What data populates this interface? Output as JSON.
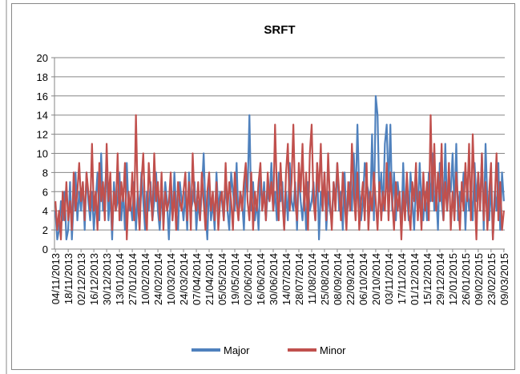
{
  "chart_data": {
    "type": "line",
    "title": "SRFT",
    "categories": [
      "04/11/2013",
      null,
      null,
      null,
      null,
      null,
      null,
      "18/11/2013",
      null,
      null,
      null,
      null,
      null,
      null,
      "02/12/2013",
      null,
      null,
      null,
      null,
      null,
      null,
      "16/12/2013",
      null,
      null,
      null,
      null,
      null,
      null,
      "30/12/2013",
      null,
      null,
      null,
      null,
      null,
      null,
      "13/01/2014",
      null,
      null,
      null,
      null,
      null,
      null,
      "27/01/2014",
      null,
      null,
      null,
      null,
      null,
      null,
      "10/02/2014",
      null,
      null,
      null,
      null,
      null,
      null,
      "24/02/2014",
      null,
      null,
      null,
      null,
      null,
      null,
      "10/03/2014",
      null,
      null,
      null,
      null,
      null,
      null,
      "24/03/2014",
      null,
      null,
      null,
      null,
      null,
      null,
      "07/04/2014",
      null,
      null,
      null,
      null,
      null,
      null,
      "21/04/2014",
      null,
      null,
      null,
      null,
      null,
      null,
      "05/05/2014",
      null,
      null,
      null,
      null,
      null,
      null,
      "19/05/2014",
      null,
      null,
      null,
      null,
      null,
      null,
      "02/06/2014",
      null,
      null,
      null,
      null,
      null,
      null,
      "16/06/2014",
      null,
      null,
      null,
      null,
      null,
      null,
      "30/06/2014",
      null,
      null,
      null,
      null,
      null,
      null,
      "14/07/2014",
      null,
      null,
      null,
      null,
      null,
      null,
      "28/07/2014",
      null,
      null,
      null,
      null,
      null,
      null,
      "11/08/2014",
      null,
      null,
      null,
      null,
      null,
      null,
      "25/08/2014",
      null,
      null,
      null,
      null,
      null,
      null,
      "08/09/2014",
      null,
      null,
      null,
      null,
      null,
      null,
      "22/09/2014",
      null,
      null,
      null,
      null,
      null,
      null,
      "06/10/2014",
      null,
      null,
      null,
      null,
      null,
      null,
      "20/10/2014",
      null,
      null,
      null,
      null,
      null,
      null,
      "03/11/2014",
      null,
      null,
      null,
      null,
      null,
      null,
      "17/11/2014",
      null,
      null,
      null,
      null,
      null,
      null,
      "01/12/2014",
      null,
      null,
      null,
      null,
      null,
      null,
      "15/12/2014",
      null,
      null,
      null,
      null,
      null,
      null,
      "29/12/2014",
      null,
      null,
      null,
      null,
      null,
      null,
      "12/01/2015",
      null,
      null,
      null,
      null,
      null,
      null,
      "26/01/2015",
      null,
      null,
      null,
      null,
      null,
      null,
      "09/02/2015",
      null,
      null,
      null,
      null,
      null,
      null,
      "23/02/2015",
      null,
      null,
      null,
      null,
      null,
      null,
      "09/03/2015"
    ],
    "series": [
      {
        "name": "Major",
        "color": "#4f81bd",
        "values": [
          4,
          1,
          2,
          5,
          3,
          6,
          1,
          2,
          7,
          1,
          5,
          8,
          3,
          6,
          4,
          7,
          2,
          8,
          5,
          3,
          6,
          2,
          5,
          8,
          3,
          10,
          4,
          6,
          9,
          3,
          6,
          1,
          7,
          4,
          5,
          8,
          3,
          6,
          2,
          9,
          4,
          5,
          3,
          7,
          2,
          6,
          4,
          8,
          5,
          2,
          6,
          4,
          7,
          3,
          5,
          8,
          4,
          2,
          6,
          3,
          7,
          5,
          1,
          6,
          3,
          8,
          4,
          2,
          7,
          5,
          3,
          6,
          2,
          8,
          4,
          5,
          7,
          2,
          5,
          3,
          6,
          10,
          4,
          1,
          7,
          3,
          5,
          2,
          8,
          4,
          6,
          5,
          3,
          7,
          4,
          2,
          8,
          6,
          4,
          9,
          3,
          6,
          5,
          2,
          8,
          6,
          14,
          4,
          7,
          3,
          5,
          2,
          8,
          4,
          7,
          3,
          6,
          5,
          9,
          4,
          6,
          3,
          8,
          5,
          7,
          2,
          6,
          3,
          9,
          5,
          4,
          7,
          2,
          8,
          5,
          3,
          6,
          2,
          7,
          4,
          5,
          7,
          3,
          9,
          1,
          6,
          4,
          8,
          2,
          6,
          4,
          3,
          7,
          5,
          9,
          4,
          6,
          2,
          8,
          3,
          5,
          7,
          4,
          10,
          5,
          13,
          6,
          3,
          5,
          9,
          7,
          6,
          4,
          12,
          3,
          16,
          14,
          5,
          8,
          4,
          11,
          13,
          6,
          13,
          4,
          8,
          3,
          7,
          5,
          2,
          9,
          4,
          6,
          3,
          8,
          5,
          2,
          7,
          4,
          9,
          5,
          3,
          6,
          3,
          8,
          5,
          10,
          4,
          6,
          2,
          9,
          5,
          3,
          11,
          4,
          7,
          6,
          10,
          4,
          11,
          3,
          6,
          5,
          8,
          2,
          7,
          4,
          6,
          3,
          9,
          5,
          8,
          4,
          10,
          2,
          11,
          5,
          3,
          7,
          1,
          6,
          4,
          9,
          2,
          8,
          5
        ]
      },
      {
        "name": "Minor",
        "color": "#c0504d",
        "values": [
          5,
          2,
          4,
          1,
          6,
          3,
          7,
          3,
          5,
          2,
          8,
          4,
          6,
          9,
          5,
          7,
          3,
          8,
          6,
          4,
          11,
          4,
          6,
          2,
          9,
          5,
          7,
          3,
          11,
          5,
          8,
          2,
          6,
          4,
          10,
          3,
          7,
          5,
          9,
          1,
          6,
          4,
          8,
          3,
          14,
          5,
          2,
          7,
          10,
          4,
          2,
          9,
          6,
          3,
          10,
          5,
          7,
          3,
          8,
          2,
          6,
          4,
          5,
          8,
          3,
          6,
          2,
          7,
          5,
          4,
          6,
          8,
          3,
          7,
          2,
          10,
          5,
          4,
          7,
          3,
          8,
          5,
          2,
          6,
          8,
          4,
          6,
          3,
          7,
          2,
          5,
          6,
          3,
          9,
          4,
          7,
          5,
          2,
          8,
          5,
          3,
          6,
          4,
          7,
          9,
          5,
          3,
          8,
          2,
          6,
          4,
          7,
          9,
          4,
          6,
          3,
          8,
          5,
          7,
          4,
          13,
          6,
          3,
          9,
          5,
          2,
          8,
          11,
          4,
          7,
          13,
          5,
          3,
          9,
          6,
          11,
          4,
          8,
          2,
          10,
          13,
          5,
          3,
          9,
          6,
          11,
          4,
          8,
          3,
          10,
          5,
          2,
          7,
          4,
          9,
          6,
          3,
          8,
          5,
          2,
          7,
          4,
          11,
          6,
          3,
          8,
          2,
          5,
          7,
          3,
          9,
          2,
          6,
          4,
          8,
          5,
          2,
          7,
          3,
          6,
          4,
          9,
          3,
          8,
          5,
          2,
          7,
          4,
          6,
          1,
          6,
          3,
          8,
          4,
          2,
          7,
          5,
          9,
          3,
          6,
          2,
          8,
          4,
          7,
          3,
          14,
          5,
          11,
          4,
          8,
          5,
          11,
          3,
          7,
          4,
          9,
          2,
          6,
          3,
          8,
          5,
          2,
          7,
          4,
          9,
          5,
          11,
          3,
          12,
          6,
          1,
          8,
          4,
          10,
          3,
          7,
          2,
          6,
          9,
          1,
          5,
          10,
          3,
          7,
          2,
          4
        ]
      }
    ],
    "ylim": [
      0,
      20
    ],
    "yticks": [
      0,
      2,
      4,
      6,
      8,
      10,
      12,
      14,
      16,
      18,
      20
    ],
    "grid": true,
    "legend": "bottom"
  }
}
